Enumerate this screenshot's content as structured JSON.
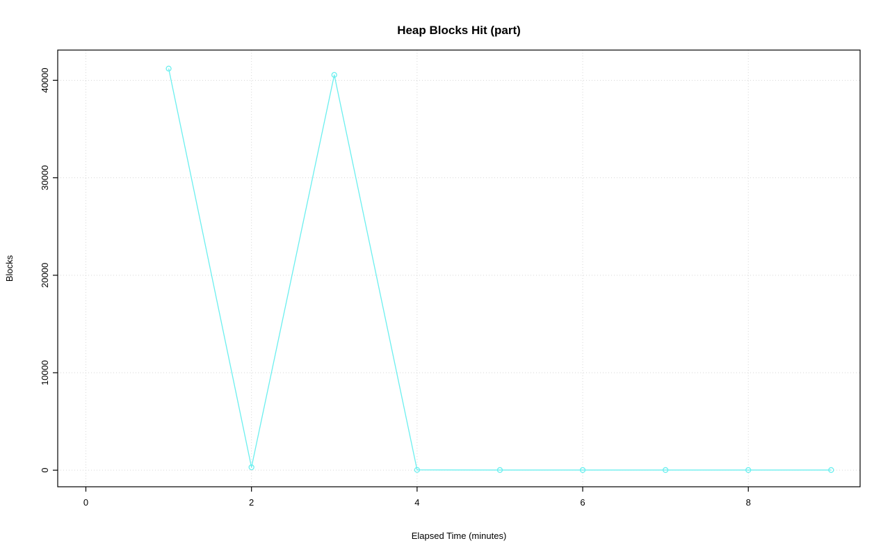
{
  "chart_data": {
    "type": "line",
    "title": "Heap Blocks Hit (part)",
    "xlabel": "Elapsed Time (minutes)",
    "ylabel": "Blocks",
    "x": [
      1,
      2,
      3,
      4,
      5,
      6,
      7,
      8,
      9
    ],
    "values": [
      41200,
      300,
      40550,
      30,
      15,
      15,
      15,
      15,
      15
    ],
    "series_name": "Heap Blocks Hit",
    "xlim": [
      -0.34,
      9.35
    ],
    "ylim": [
      -1700,
      43100
    ],
    "xticks": [
      0,
      2,
      4,
      6,
      8
    ],
    "xtick_labels": [
      "0",
      "2",
      "4",
      "6",
      "8"
    ],
    "yticks": [
      0,
      10000,
      20000,
      30000,
      40000
    ],
    "ytick_labels": [
      "0",
      "10000",
      "20000",
      "30000",
      "40000"
    ],
    "grid": true,
    "legend_position": "none",
    "line_color": "#6BEFEF",
    "marker": "open-circle",
    "grid_color": "#d6d6d6",
    "box_color": "#000000"
  }
}
